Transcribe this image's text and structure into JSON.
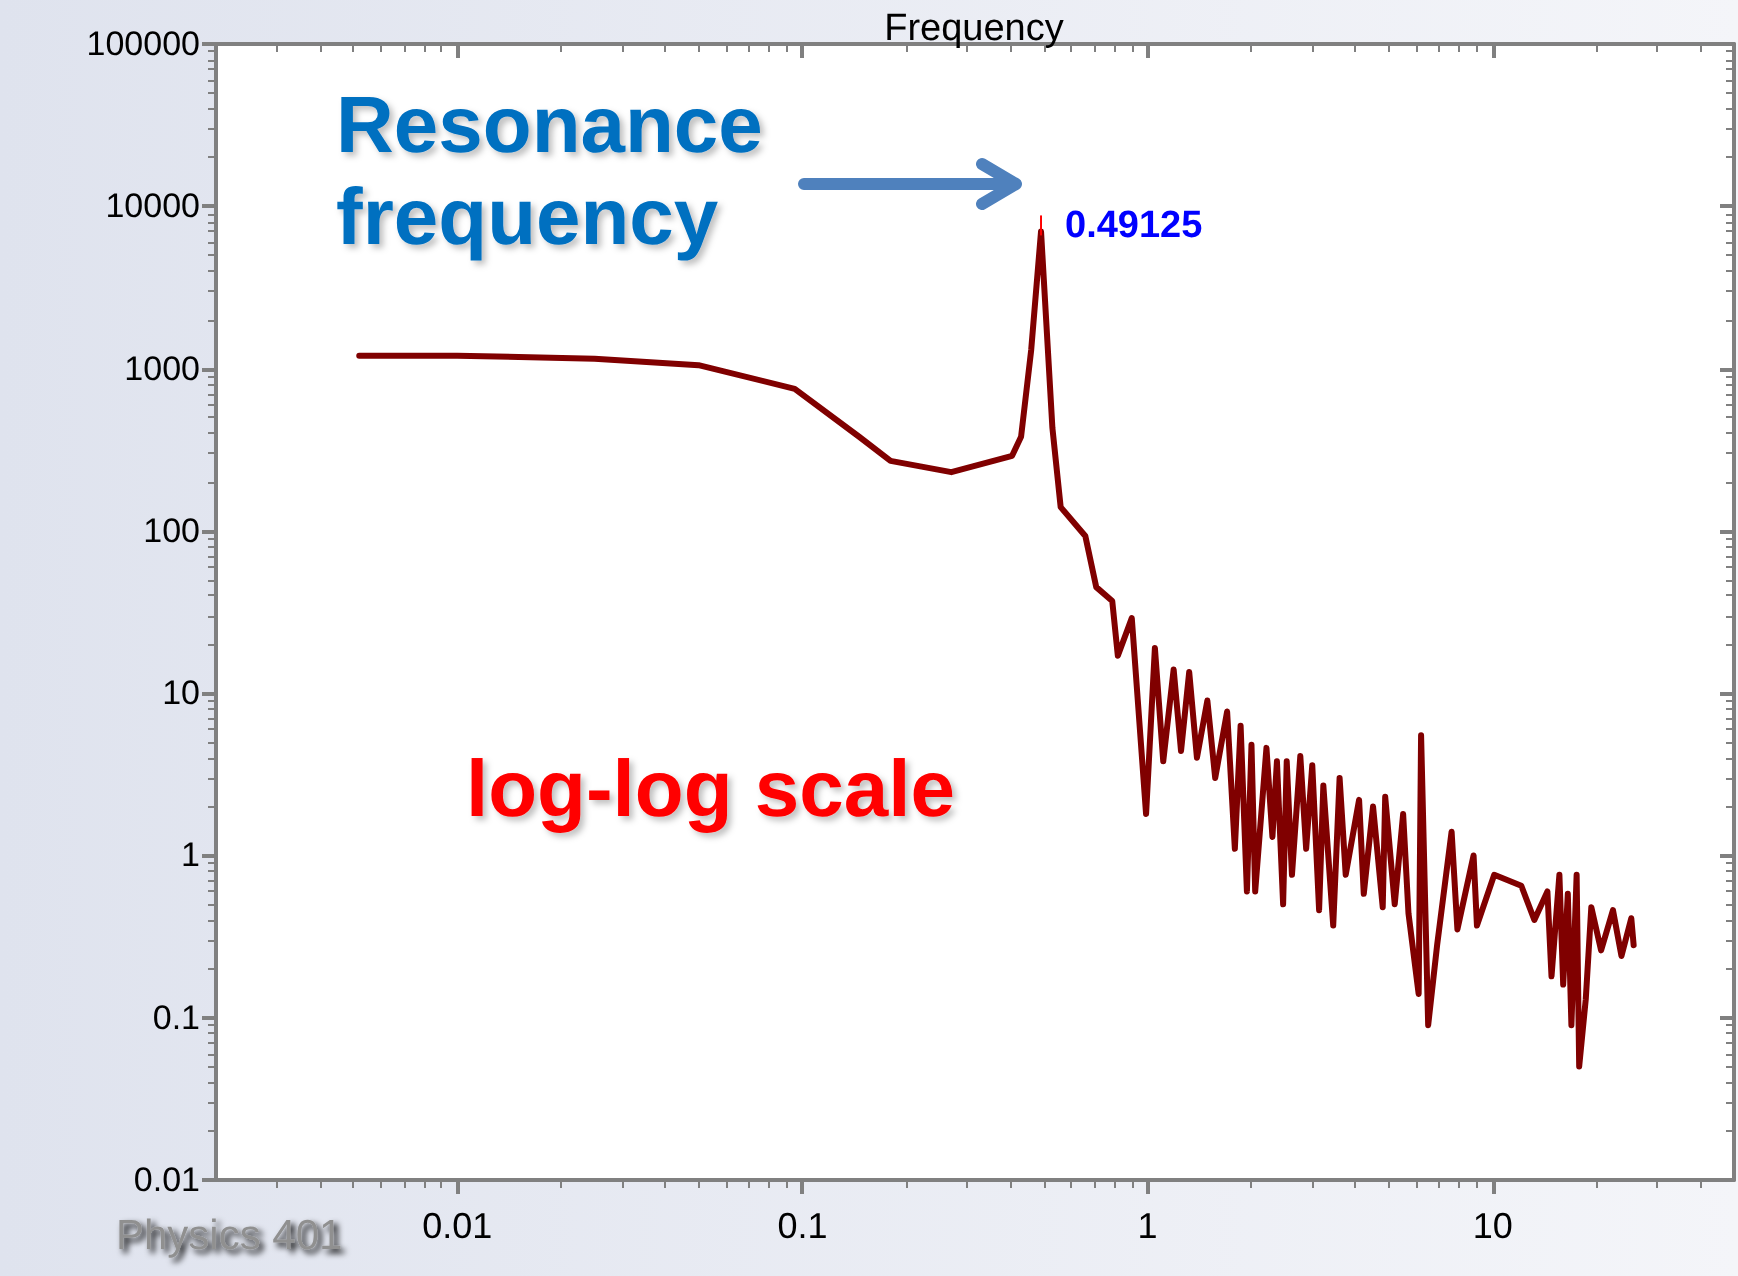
{
  "chart_data": {
    "type": "line",
    "title": "Frequency",
    "log": "xy",
    "marker": "none",
    "line_style": "solid",
    "xlim": [
      0.002,
      50
    ],
    "xticks": [
      0.01,
      0.1,
      1,
      10
    ],
    "ylim": [
      0.01,
      100000
    ],
    "yticks": [
      0.01,
      0.1,
      1,
      10,
      100,
      1000,
      10000,
      100000
    ],
    "annotations": [
      "Resonance frequency",
      {
        "text": "0.49125",
        "x": 0.49125,
        "y": 7000
      },
      "log-log scale",
      "Physics 401"
    ],
    "series": [
      {
        "color": "#800000",
        "x": [
          0.0052,
          0.01,
          0.025,
          0.05,
          0.095,
          0.146,
          0.18,
          0.27,
          0.405,
          0.43,
          0.46,
          0.49125,
          0.53,
          0.56,
          0.66,
          0.71,
          0.79,
          0.82,
          0.9,
          0.99,
          1.05,
          1.11,
          1.19,
          1.25,
          1.32,
          1.39,
          1.49,
          1.57,
          1.7,
          1.79,
          1.86,
          1.94,
          2.0,
          2.05,
          2.21,
          2.3,
          2.37,
          2.47,
          2.53,
          2.62,
          2.77,
          2.88,
          3.0,
          3.14,
          3.23,
          3.45,
          3.6,
          3.75,
          4.1,
          4.23,
          4.5,
          4.8,
          4.88,
          5.2,
          5.5,
          5.7,
          6.1,
          6.2,
          6.5,
          6.9,
          7.6,
          7.9,
          8.8,
          9.0,
          10.1,
          12.1,
          13.2,
          14.4,
          14.8,
          15.6,
          16.0,
          16.5,
          16.9,
          17.5,
          17.8,
          18.6,
          19.3,
          20.6,
          22.3,
          23.6,
          25.2,
          25.6
        ],
        "values": [
          1200,
          1200,
          1150,
          1050,
          750,
          380,
          270,
          230,
          290,
          380,
          1300,
          7000,
          430,
          140,
          93,
          45,
          37,
          17,
          29,
          1.8,
          19,
          3.8,
          14,
          4.4,
          13.5,
          4,
          9,
          3,
          7.7,
          1.1,
          6.3,
          0.6,
          4.8,
          0.6,
          4.6,
          1.3,
          3.8,
          0.5,
          3.8,
          0.76,
          4.1,
          1.1,
          3.6,
          0.46,
          2.7,
          0.37,
          3,
          0.76,
          2.2,
          0.58,
          2,
          0.48,
          2.3,
          0.5,
          1.8,
          0.44,
          0.14,
          5.5,
          0.09,
          0.28,
          1.4,
          0.35,
          1,
          0.37,
          0.76,
          0.65,
          0.4,
          0.6,
          0.18,
          0.76,
          0.16,
          0.58,
          0.09,
          0.76,
          0.05,
          0.13,
          0.48,
          0.26,
          0.46,
          0.24,
          0.41,
          0.28
        ]
      }
    ]
  }
}
